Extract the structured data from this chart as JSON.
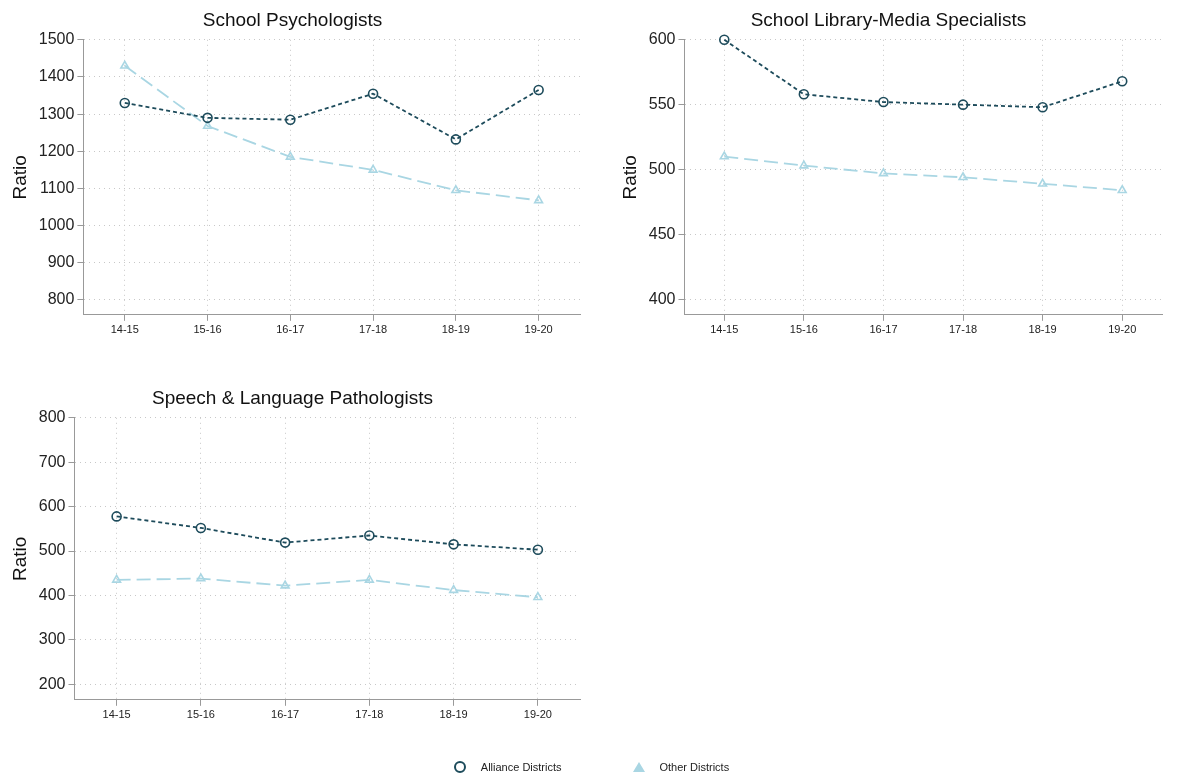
{
  "chart_data": [
    {
      "type": "line",
      "title": "School Psychologists",
      "ylabel": "Ratio",
      "categories": [
        "14-15",
        "15-16",
        "16-17",
        "17-18",
        "18-19",
        "19-20"
      ],
      "series": [
        {
          "name": "Alliance Districts",
          "color": "#1d4b5b",
          "marker": "circle",
          "line_style": "dashed",
          "values": [
            1330,
            1290,
            1285,
            1355,
            1232,
            1365
          ]
        },
        {
          "name": "Other Districts",
          "color": "#a9d6e3",
          "marker": "triangle",
          "line_style": "dashed",
          "values": [
            1430,
            1268,
            1185,
            1150,
            1095,
            1068
          ]
        }
      ],
      "ylim": [
        760,
        1500
      ],
      "yticks": [
        800,
        900,
        1000,
        1100,
        1200,
        1300,
        1400,
        1500
      ],
      "grid": true,
      "legend": "bottom"
    },
    {
      "type": "line",
      "title": "School Library-Media Specialists",
      "ylabel": "Ratio",
      "categories": [
        "14-15",
        "15-16",
        "16-17",
        "17-18",
        "18-19",
        "19-20"
      ],
      "series": [
        {
          "color": "#1d4b5b",
          "marker": "circle",
          "line_style": "dashed",
          "values": [
            600,
            558,
            552,
            550,
            548,
            568
          ]
        },
        {
          "color": "#a9d6e3",
          "marker": "triangle",
          "line_style": "dashed",
          "values": [
            510,
            503,
            497,
            494,
            489,
            484
          ]
        }
      ],
      "ylim": [
        388,
        600
      ],
      "yticks": [
        400,
        450,
        500,
        550,
        600
      ],
      "grid": true
    },
    {
      "type": "line",
      "title": "Speech & Language Pathologists",
      "ylabel": "Ratio",
      "categories": [
        "14-15",
        "15-16",
        "16-17",
        "17-18",
        "18-19",
        "19-20"
      ],
      "series": [
        {
          "color": "#1d4b5b",
          "marker": "circle",
          "line_style": "dashed",
          "values": [
            578,
            552,
            519,
            535,
            515,
            503
          ]
        },
        {
          "color": "#a9d6e3",
          "marker": "triangle",
          "line_style": "dashed",
          "values": [
            435,
            438,
            422,
            435,
            412,
            396
          ]
        }
      ],
      "ylim": [
        165,
        800
      ],
      "yticks": [
        200,
        300,
        400,
        500,
        600,
        700,
        800
      ],
      "grid": true
    }
  ]
}
